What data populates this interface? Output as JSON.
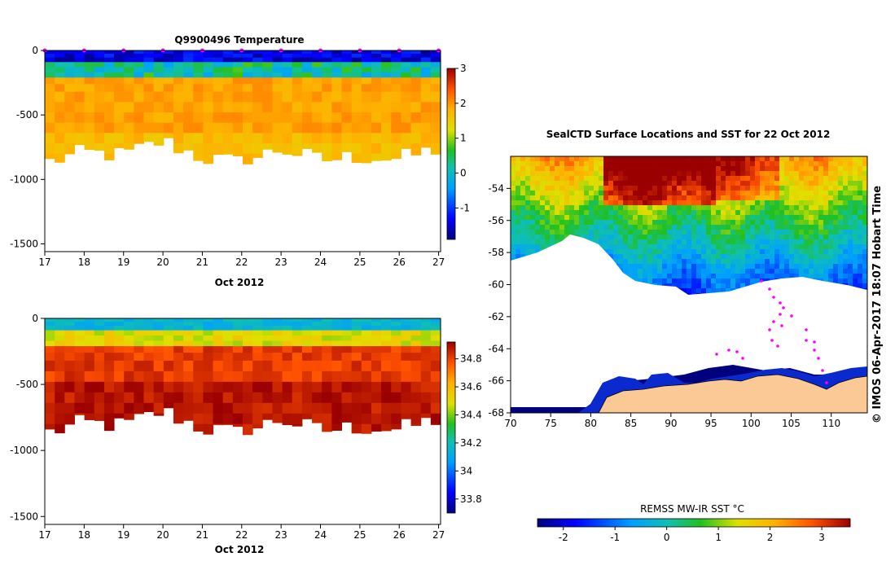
{
  "chart_data": [
    {
      "type": "heatmap",
      "title": "Q9900496  Temperature",
      "xlabel": "Oct 2012",
      "ylabel": "",
      "x_ticks": [
        "17",
        "18",
        "19",
        "20",
        "21",
        "22",
        "23",
        "24",
        "25",
        "26",
        "27"
      ],
      "x_range": [
        17,
        27.05
      ],
      "y_ticks": [
        "0",
        "-500",
        "-1000",
        "-1500"
      ],
      "y_range": [
        -1560,
        0
      ],
      "colorbar_ticks": [
        "-1",
        "0",
        "1",
        "2",
        "3"
      ],
      "colorbar_range": [
        -1.9,
        3.0
      ],
      "profile_days": [
        17,
        18,
        19,
        20,
        21,
        22,
        23,
        24,
        25,
        26,
        27
      ],
      "profile_max_depth_m": [
        -870,
        -790,
        -810,
        -700,
        -830,
        -870,
        -760,
        -850,
        -820,
        -840,
        -760
      ],
      "layers_degC": {
        "surface_0_100m": -1.6,
        "pycnocline_100_200m": 0.2,
        "deep_200m_plus": 1.9
      }
    },
    {
      "type": "heatmap",
      "title": "",
      "xlabel": "Oct 2012",
      "ylabel": "",
      "x_ticks": [
        "17",
        "18",
        "19",
        "20",
        "21",
        "22",
        "23",
        "24",
        "25",
        "26",
        "27"
      ],
      "x_range": [
        17,
        27.05
      ],
      "y_ticks": [
        "0",
        "-500",
        "-1000",
        "-1500"
      ],
      "y_range": [
        -1560,
        0
      ],
      "colorbar_ticks": [
        "33.8",
        "34",
        "34.2",
        "34.4",
        "34.6",
        "34.8"
      ],
      "colorbar_range": [
        33.7,
        34.92
      ],
      "layers_psu": {
        "surface_0_80m": 34.15,
        "halocline_80_200m": 34.5,
        "deep_200m_plus": 34.8
      }
    },
    {
      "type": "heatmap",
      "title": "SealCTD Surface Locations and SST for 22 Oct 2012",
      "xlabel": "",
      "ylabel": "",
      "x_ticks": [
        "70",
        "75",
        "80",
        "85",
        "90",
        "95",
        "100",
        "105",
        "110"
      ],
      "x_range": [
        70,
        114.5
      ],
      "y_ticks": [
        "-54",
        "-56",
        "-58",
        "-60",
        "-62",
        "-64",
        "-66",
        "-68"
      ],
      "y_range": [
        -68,
        -52
      ],
      "colorbar_title": "REMSS MW-IR SST °C",
      "colorbar_ticks": [
        "-2",
        "-1",
        "0",
        "1",
        "2",
        "3"
      ],
      "colorbar_range": [
        -2.5,
        3.55
      ],
      "side_label": "© IMOS 06-Apr-2017 18:07 Hobart Time"
    }
  ]
}
